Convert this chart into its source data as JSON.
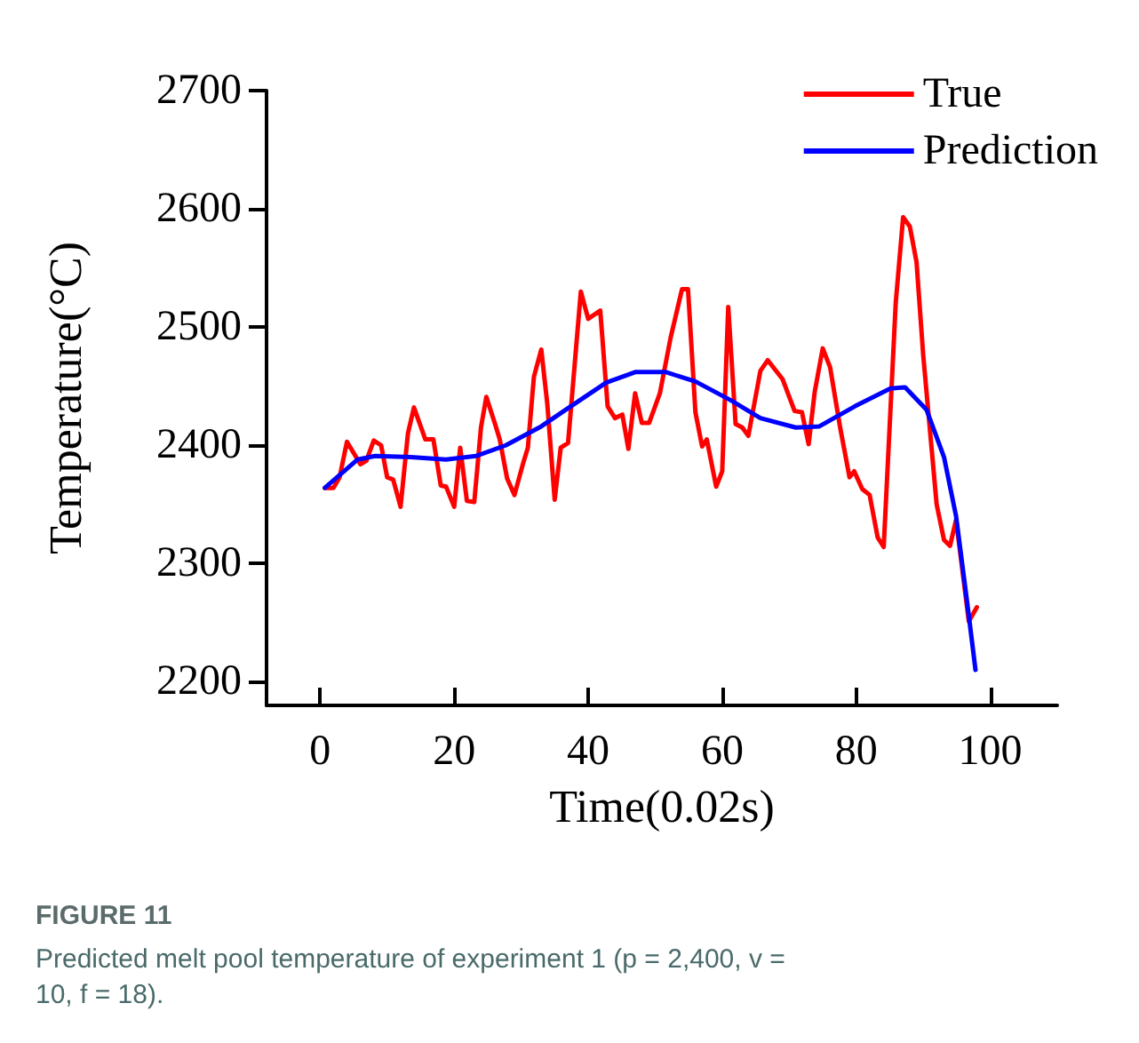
{
  "chart_data": {
    "type": "line",
    "xlabel": "Time(0.02s)",
    "ylabel": "Temperature(°C)",
    "xlim": [
      -8,
      110
    ],
    "xticks": [
      0,
      20,
      40,
      60,
      80,
      100
    ],
    "ylim": [
      2180,
      2700
    ],
    "yticks": [
      2200,
      2300,
      2400,
      2500,
      2600,
      2700
    ],
    "grid": false,
    "legend": "top right",
    "marker": "none",
    "line_style": "solid",
    "annotations": [
      "FIGURE 11",
      "Predicted melt pool temperature of experiment 1 (p = 2,400, v = 10, f = 18)."
    ],
    "series": [
      {
        "name": "True",
        "color": "#ff0000",
        "x": [
          0.7,
          2,
          2.9,
          4,
          6,
          6.9,
          8,
          9.1,
          10,
          10.9,
          12,
          13.1,
          14,
          15.7,
          16.9,
          18,
          18.8,
          20,
          20.9,
          21.9,
          23,
          24,
          24.8,
          26.1,
          26.8,
          27.9,
          29,
          30.3,
          31,
          31.9,
          33,
          33.9,
          35,
          35.9,
          37,
          38.9,
          40,
          41.8,
          42.9,
          44,
          45.1,
          46,
          47,
          48,
          49.1,
          50.7,
          52.3,
          54,
          54.9,
          56,
          57,
          57.7,
          59.1,
          60,
          60.9,
          62,
          63,
          63.9,
          65.7,
          66.8,
          69,
          70.8,
          71.9,
          72.9,
          73.8,
          75,
          76.1,
          77.6,
          79,
          79.7,
          80.9,
          82,
          83.2,
          84.1,
          85.9,
          87,
          88,
          89,
          90,
          92,
          93.1,
          94,
          94.9,
          96.8,
          98
        ],
        "values": [
          2364,
          2364,
          2373,
          2403,
          2384,
          2387,
          2404,
          2400,
          2373,
          2371,
          2348,
          2410,
          2432,
          2405,
          2405,
          2366,
          2365,
          2348,
          2398,
          2353,
          2352,
          2415,
          2441,
          2418,
          2405,
          2372,
          2358,
          2385,
          2398,
          2458,
          2481,
          2435,
          2354,
          2398,
          2402,
          2530,
          2507,
          2514,
          2433,
          2423,
          2426,
          2397,
          2444,
          2419,
          2419,
          2444,
          2491,
          2532,
          2532,
          2428,
          2399,
          2405,
          2365,
          2378,
          2517,
          2418,
          2415,
          2408,
          2463,
          2472,
          2456,
          2429,
          2428,
          2401,
          2445,
          2482,
          2466,
          2415,
          2373,
          2378,
          2363,
          2358,
          2322,
          2314,
          2521,
          2593,
          2585,
          2555,
          2476,
          2350,
          2320,
          2315,
          2337,
          2251,
          2263
        ]
      },
      {
        "name": "Prediction",
        "color": "#0000ff",
        "x": [
          0.7,
          5.6,
          8.2,
          13.5,
          18.8,
          23.3,
          27.7,
          33,
          37.4,
          42.7,
          47.1,
          51.5,
          56,
          61.3,
          65.7,
          71,
          74.5,
          79.8,
          85.1,
          87.3,
          90.5,
          93.1,
          94.9,
          96.6,
          97.8
        ],
        "values": [
          2364,
          2388,
          2391,
          2390,
          2388,
          2391,
          2400,
          2416,
          2433,
          2453,
          2462,
          2462,
          2454,
          2438,
          2423,
          2415,
          2416,
          2433,
          2448,
          2449,
          2430,
          2390,
          2340,
          2265,
          2210
        ]
      }
    ]
  }
}
